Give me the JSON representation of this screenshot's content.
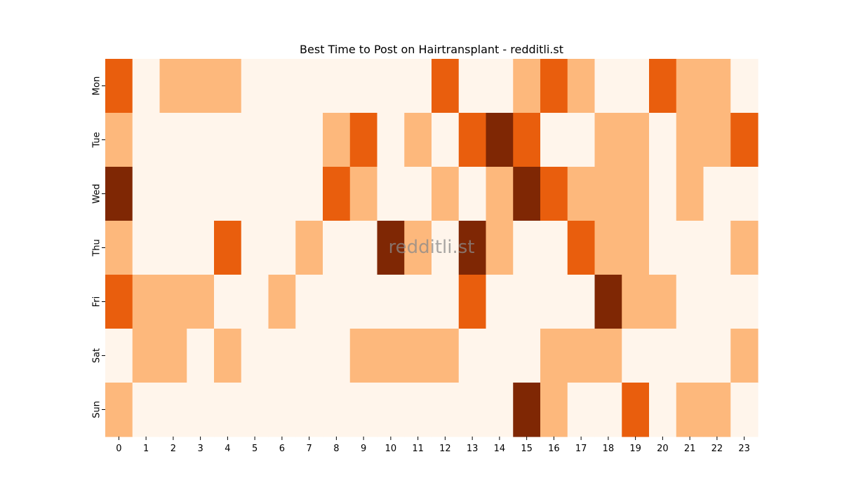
{
  "chart_data": {
    "type": "heatmap",
    "title": "Best Time to Post on Hairtransplant - redditli.st",
    "watermark": "redditli.st",
    "x_categories": [
      "0",
      "1",
      "2",
      "3",
      "4",
      "5",
      "6",
      "7",
      "8",
      "9",
      "10",
      "11",
      "12",
      "13",
      "14",
      "15",
      "16",
      "17",
      "18",
      "19",
      "20",
      "21",
      "22",
      "23"
    ],
    "y_categories": [
      "Mon",
      "Tue",
      "Wed",
      "Thu",
      "Fri",
      "Sat",
      "Sun"
    ],
    "values": [
      [
        2,
        0,
        1,
        1,
        1,
        0,
        0,
        0,
        0,
        0,
        0,
        0,
        2,
        0,
        0,
        1,
        2,
        1,
        0,
        0,
        2,
        1,
        1,
        0
      ],
      [
        1,
        0,
        0,
        0,
        0,
        0,
        0,
        0,
        1,
        2,
        0,
        1,
        0,
        2,
        3,
        2,
        0,
        0,
        1,
        1,
        0,
        1,
        1,
        2
      ],
      [
        3,
        0,
        0,
        0,
        0,
        0,
        0,
        0,
        2,
        1,
        0,
        0,
        1,
        0,
        1,
        3,
        2,
        1,
        1,
        1,
        0,
        1,
        0,
        0
      ],
      [
        1,
        0,
        0,
        0,
        2,
        0,
        0,
        1,
        0,
        0,
        3,
        1,
        0,
        3,
        1,
        0,
        0,
        2,
        1,
        1,
        0,
        0,
        0,
        1
      ],
      [
        2,
        1,
        1,
        1,
        0,
        0,
        1,
        0,
        0,
        0,
        0,
        0,
        0,
        2,
        0,
        0,
        0,
        0,
        3,
        1,
        1,
        0,
        0,
        0
      ],
      [
        0,
        1,
        1,
        0,
        1,
        0,
        0,
        0,
        0,
        1,
        1,
        1,
        1,
        0,
        0,
        0,
        1,
        1,
        1,
        0,
        0,
        0,
        0,
        1
      ],
      [
        1,
        0,
        0,
        0,
        0,
        0,
        0,
        0,
        0,
        0,
        0,
        0,
        0,
        0,
        0,
        3,
        1,
        0,
        0,
        2,
        0,
        1,
        1,
        0
      ]
    ],
    "colors": [
      "#fff5eb",
      "#fdb87c",
      "#e95e0d",
      "#7f2704"
    ],
    "grid": false,
    "legend": "none"
  }
}
